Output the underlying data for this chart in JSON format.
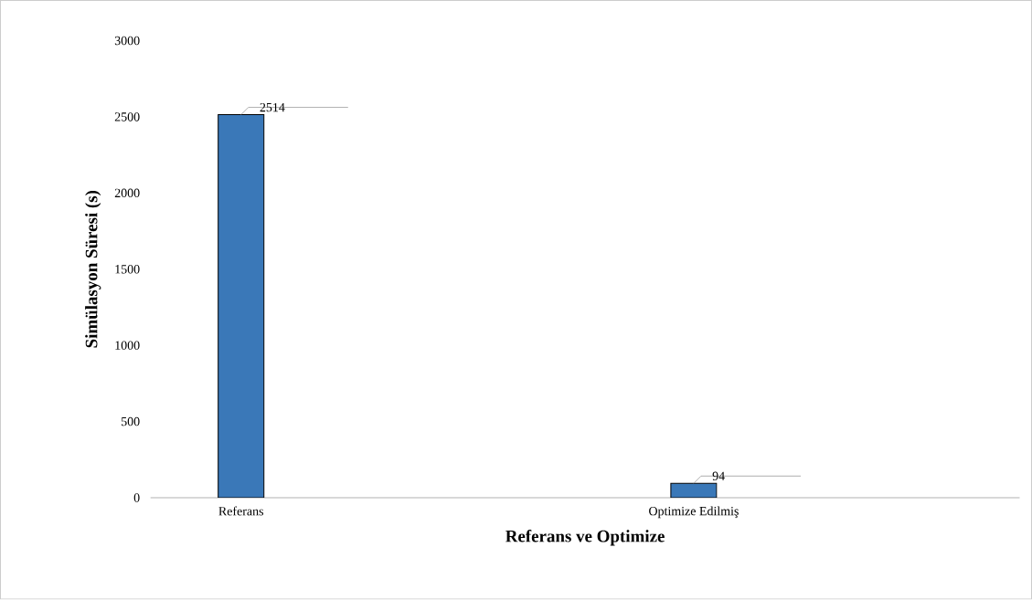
{
  "chart_data": {
    "type": "bar",
    "xlabel": "Referans ve Optimize",
    "ylabel": "Simülasyon Süresi (s)",
    "categories": [
      "Referans",
      "Optimize Edilmiş"
    ],
    "values": [
      2514,
      94
    ],
    "color": "#3a78b8",
    "ylim": [
      0,
      3000
    ],
    "yticks": [
      0,
      500,
      1000,
      1500,
      2000,
      2500,
      3000
    ],
    "value_labels": [
      "2514",
      "94"
    ],
    "grid": false
  }
}
